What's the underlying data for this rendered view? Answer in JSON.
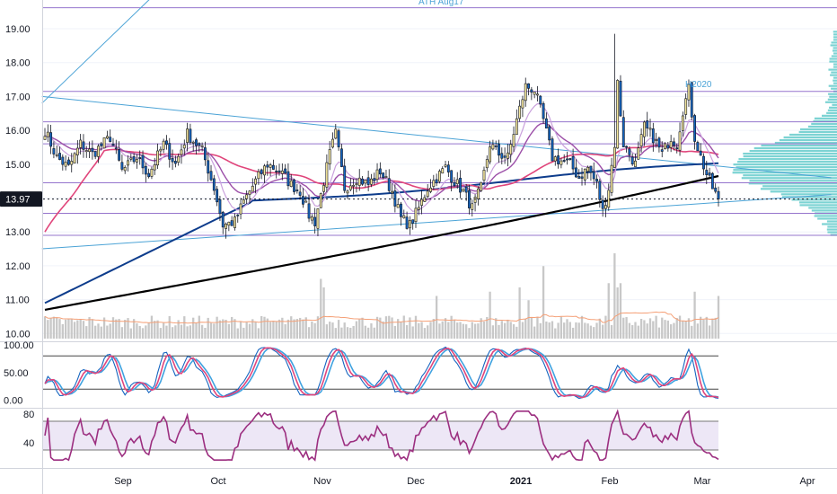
{
  "chart_data": {
    "type": "candlestick",
    "x_labels": [
      "Sep",
      "Oct",
      "Nov",
      "Dec",
      "2021",
      "Feb",
      "Mar",
      "Apr"
    ],
    "x_label_bold": "2021",
    "price_axis": {
      "ticks": [
        "19.00",
        "18.00",
        "17.00",
        "16.00",
        "15.00",
        "14.00",
        "13.00",
        "12.00",
        "11.00",
        "10.00"
      ],
      "ylim": [
        10,
        19.6
      ],
      "last_price": "13.97"
    },
    "stoch_axis": {
      "ticks": [
        "100.00",
        "50.00",
        "0.00"
      ],
      "ylim": [
        0,
        100
      ],
      "levels": [
        80,
        20
      ]
    },
    "rsi_axis": {
      "ticks": [
        "80",
        "40"
      ],
      "ylim": [
        10,
        90
      ],
      "levels": [
        70,
        30
      ]
    },
    "annotations": {
      "ath": "ATH Aug17",
      "h2020": "H2020"
    },
    "horizontal_levels": [
      19.62,
      17.15,
      16.25,
      15.6,
      14.45,
      13.55,
      12.9
    ],
    "colors": {
      "up": "#f5e79d",
      "down": "#1565c0",
      "wick": "#131722",
      "ma200": "#000000",
      "ma100": "#0d3c8c",
      "ma50": "#e0457b",
      "ema20": "#9c4fa8",
      "ema9": "#c9a0dc",
      "level": "#9575cd",
      "trend": "#4ba3d6",
      "volume": "#c8c8c8",
      "volume_ma": "#f5a077",
      "stoch_k": "#1565c0",
      "stoch_d": "#e0457b",
      "stoch_s": "#3fa2e0",
      "rsi": "#9c2f80",
      "rsi_band": "#ede7f6",
      "price_tag": "#131722",
      "profile": "#5bc8c8"
    },
    "anchors": [
      [
        0,
        16.0
      ],
      [
        4,
        15.2
      ],
      [
        8,
        14.9
      ],
      [
        12,
        15.6
      ],
      [
        16,
        15.3
      ],
      [
        22,
        15.8
      ],
      [
        26,
        14.8
      ],
      [
        31,
        15.2
      ],
      [
        35,
        14.7
      ],
      [
        40,
        15.6
      ],
      [
        44,
        15.0
      ],
      [
        48,
        15.9
      ],
      [
        53,
        15.4
      ],
      [
        57,
        14.3
      ],
      [
        60,
        13.2
      ],
      [
        64,
        13.3
      ],
      [
        67,
        13.9
      ],
      [
        71,
        14.5
      ],
      [
        75,
        15.0
      ],
      [
        79,
        14.8
      ],
      [
        83,
        14.4
      ],
      [
        86,
        14.2
      ],
      [
        89,
        13.5
      ],
      [
        91,
        13.3
      ],
      [
        94,
        14.5
      ],
      [
        96,
        15.3
      ],
      [
        98,
        15.9
      ],
      [
        101,
        14.3
      ],
      [
        105,
        14.6
      ],
      [
        109,
        14.4
      ],
      [
        113,
        14.8
      ],
      [
        117,
        14.2
      ],
      [
        120,
        13.4
      ],
      [
        123,
        13.2
      ],
      [
        126,
        13.7
      ],
      [
        129,
        14.3
      ],
      [
        132,
        14.6
      ],
      [
        135,
        14.9
      ],
      [
        138,
        14.5
      ],
      [
        141,
        14.2
      ],
      [
        144,
        13.7
      ],
      [
        147,
        14.3
      ],
      [
        150,
        15.6
      ],
      [
        153,
        15.3
      ],
      [
        156,
        15.2
      ],
      [
        159,
        16.3
      ],
      [
        162,
        17.3
      ],
      [
        165,
        17.2
      ],
      [
        168,
        16.3
      ],
      [
        171,
        15.2
      ],
      [
        174,
        15.1
      ],
      [
        177,
        15.0
      ],
      [
        180,
        14.6
      ],
      [
        183,
        14.9
      ],
      [
        186,
        14.4
      ],
      [
        188,
        13.6
      ],
      [
        190,
        14.3
      ],
      [
        192,
        15.6
      ],
      [
        193,
        17.4
      ],
      [
        195,
        15.6
      ],
      [
        199,
        15.0
      ],
      [
        202,
        16.1
      ],
      [
        205,
        15.8
      ],
      [
        208,
        15.3
      ],
      [
        211,
        15.8
      ],
      [
        213,
        15.6
      ],
      [
        215,
        16.6
      ],
      [
        217,
        17.2
      ],
      [
        219,
        15.8
      ],
      [
        221,
        15.2
      ],
      [
        223,
        14.7
      ],
      [
        225,
        14.3
      ],
      [
        227,
        13.97
      ]
    ],
    "volume_spikes": [
      [
        93,
        0.7
      ],
      [
        94,
        0.6
      ],
      [
        132,
        0.5
      ],
      [
        150,
        0.55
      ],
      [
        160,
        0.6
      ],
      [
        163,
        0.45
      ],
      [
        168,
        0.85
      ],
      [
        190,
        0.65
      ],
      [
        192,
        1.0
      ],
      [
        193,
        0.6
      ],
      [
        194,
        0.65
      ],
      [
        219,
        0.55
      ],
      [
        227,
        0.5
      ]
    ]
  }
}
